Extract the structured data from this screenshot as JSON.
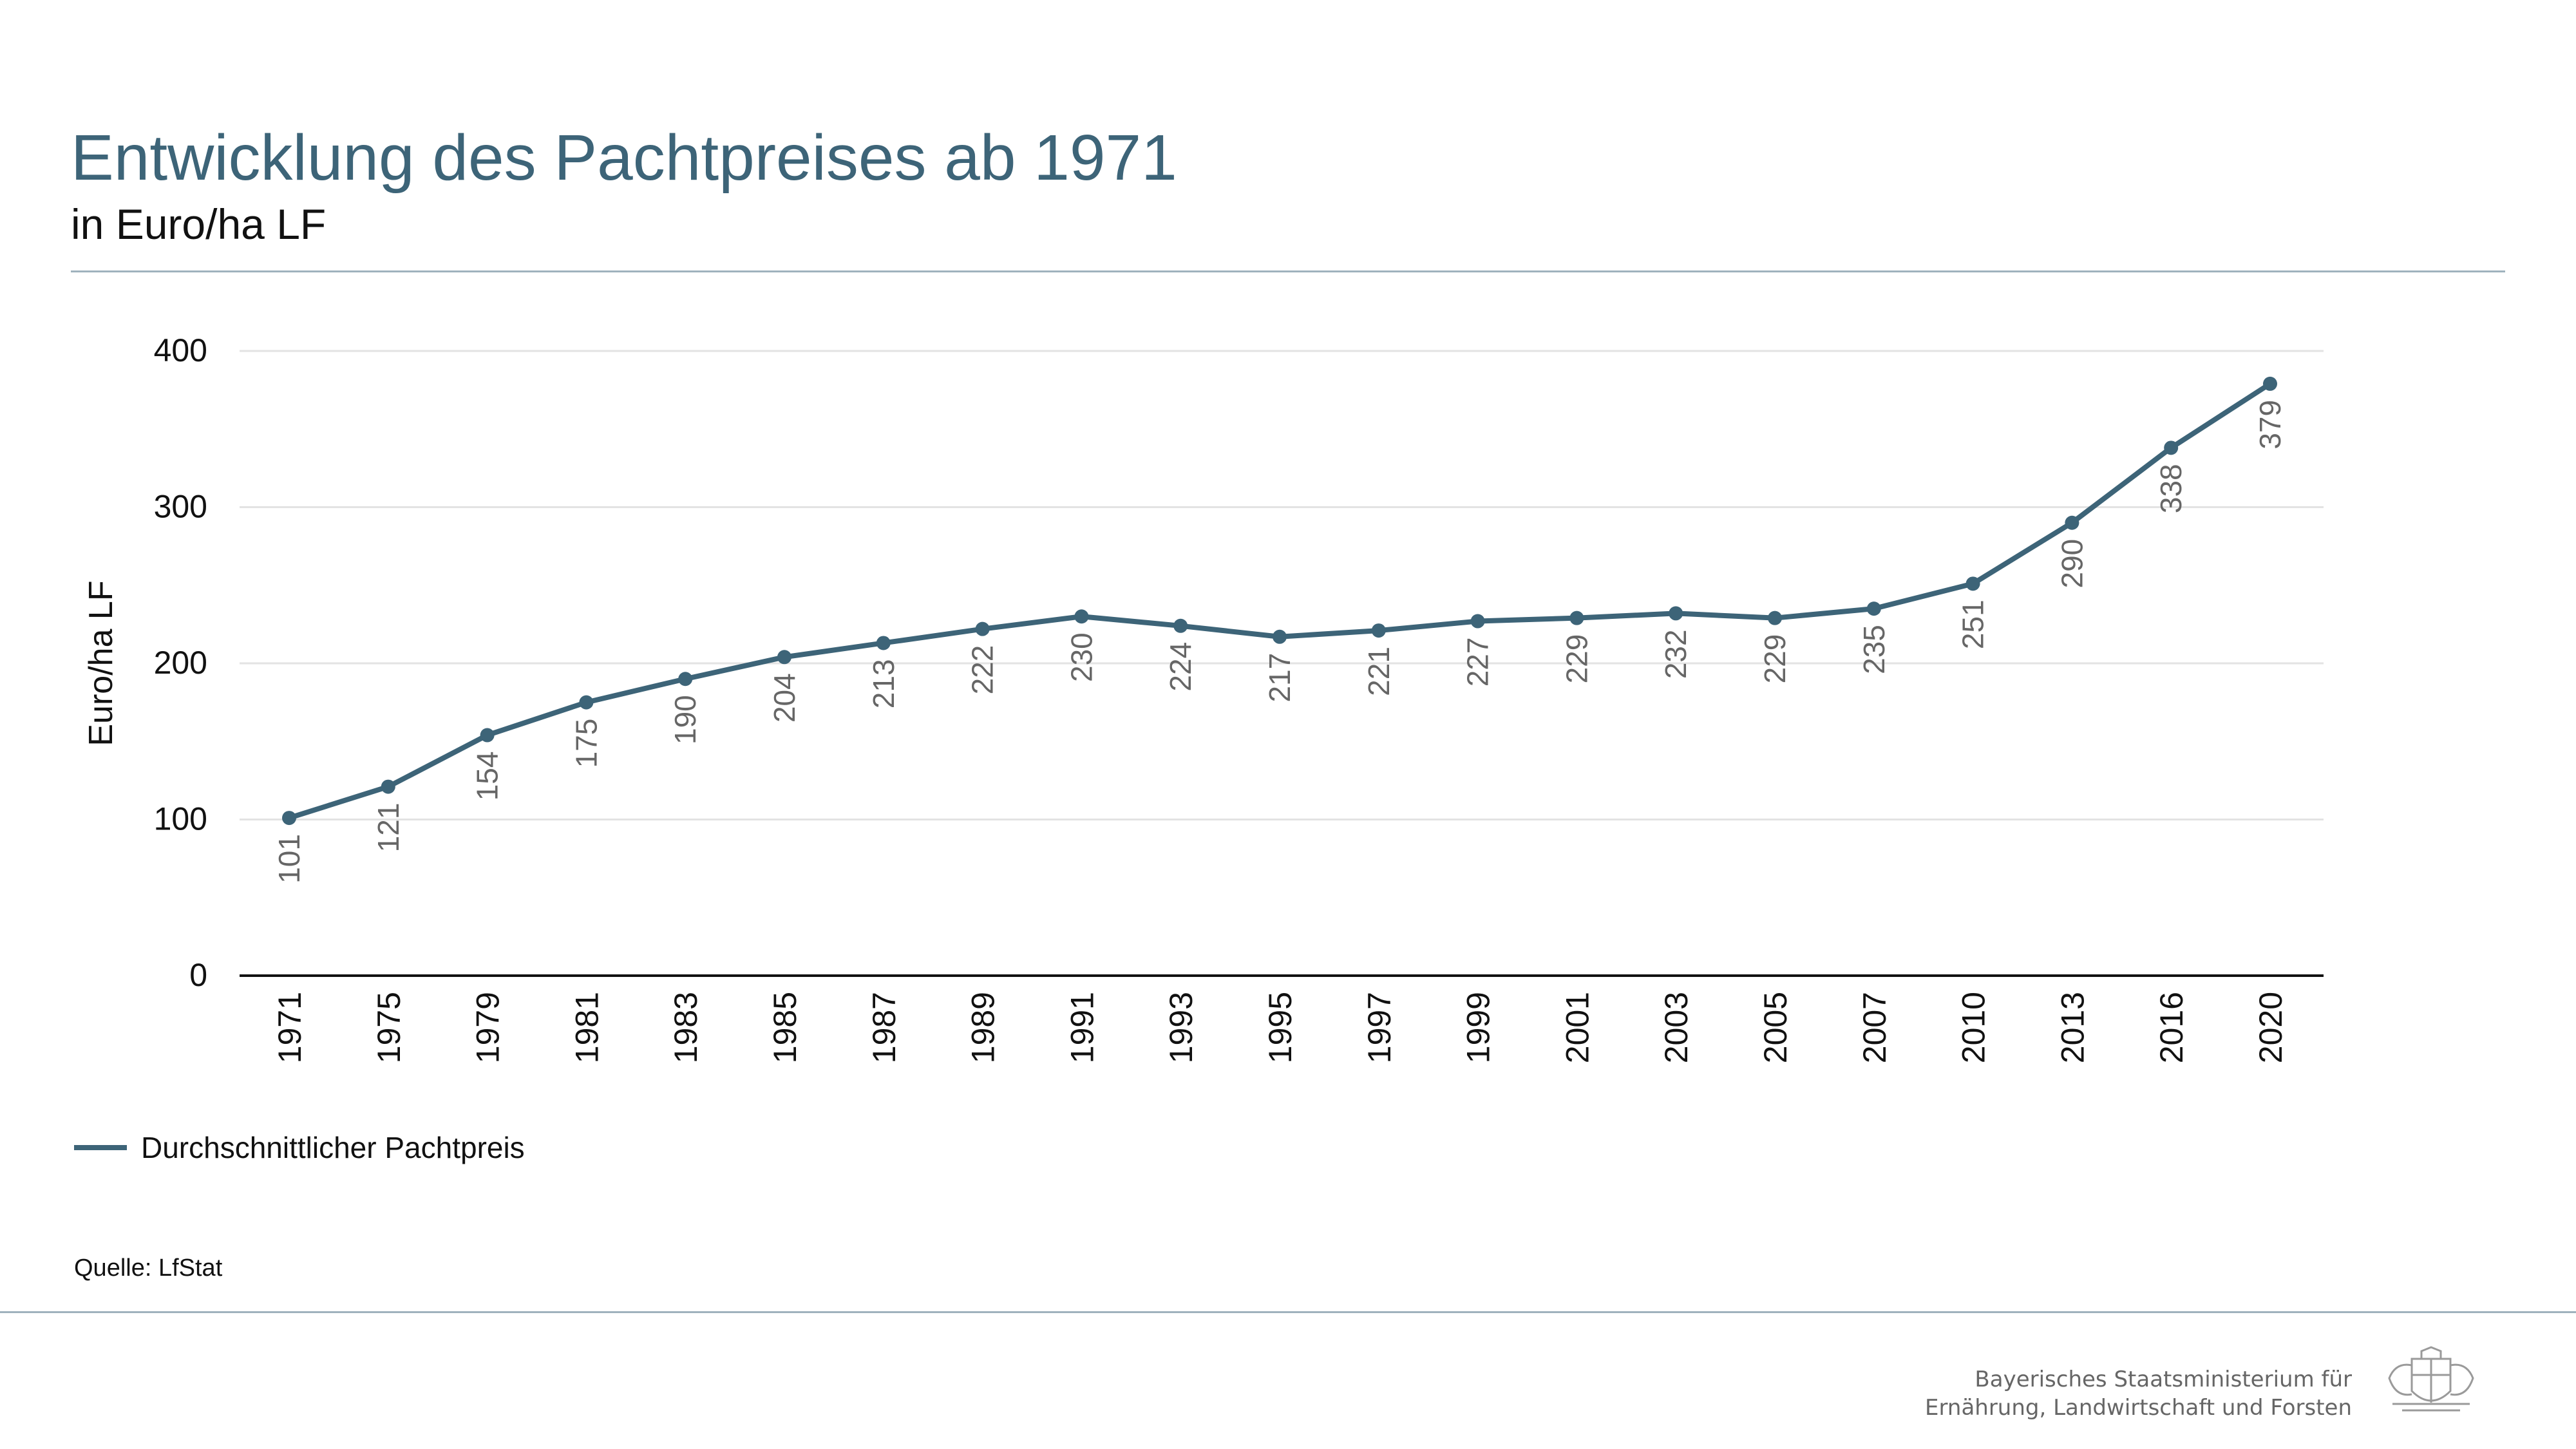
{
  "header": {
    "title": "Entwicklung des Pachtpreises ab 1971",
    "subtitle": "in Euro/ha LF"
  },
  "legend": {
    "label": "Durchschnittlicher Pachtpreis"
  },
  "footer": {
    "source": "Quelle: LfStat",
    "ministry_line1": "Bayerisches Staatsministerium für",
    "ministry_line2": "Ernährung, Landwirtschaft und Forsten"
  },
  "colors": {
    "accent": "#3d6478",
    "axis": "#111111",
    "grid": "#e3e3e3",
    "label": "#666666"
  },
  "chart_data": {
    "type": "line",
    "ylabel": "Euro/ha LF",
    "xlabel": "",
    "ylim": [
      0,
      400
    ],
    "yticks": [
      0,
      100,
      200,
      300,
      400
    ],
    "grid": true,
    "legend_position": "bottom-left",
    "categories": [
      "1971",
      "1975",
      "1979",
      "1981",
      "1983",
      "1985",
      "1987",
      "1989",
      "1991",
      "1993",
      "1995",
      "1997",
      "1999",
      "2001",
      "2003",
      "2005",
      "2007",
      "2010",
      "2013",
      "2016",
      "2020"
    ],
    "series": [
      {
        "name": "Durchschnittlicher Pachtpreis",
        "values": [
          101,
          121,
          154,
          175,
          190,
          204,
          213,
          222,
          230,
          224,
          217,
          221,
          227,
          229,
          232,
          229,
          235,
          251,
          290,
          338,
          379
        ]
      }
    ]
  }
}
